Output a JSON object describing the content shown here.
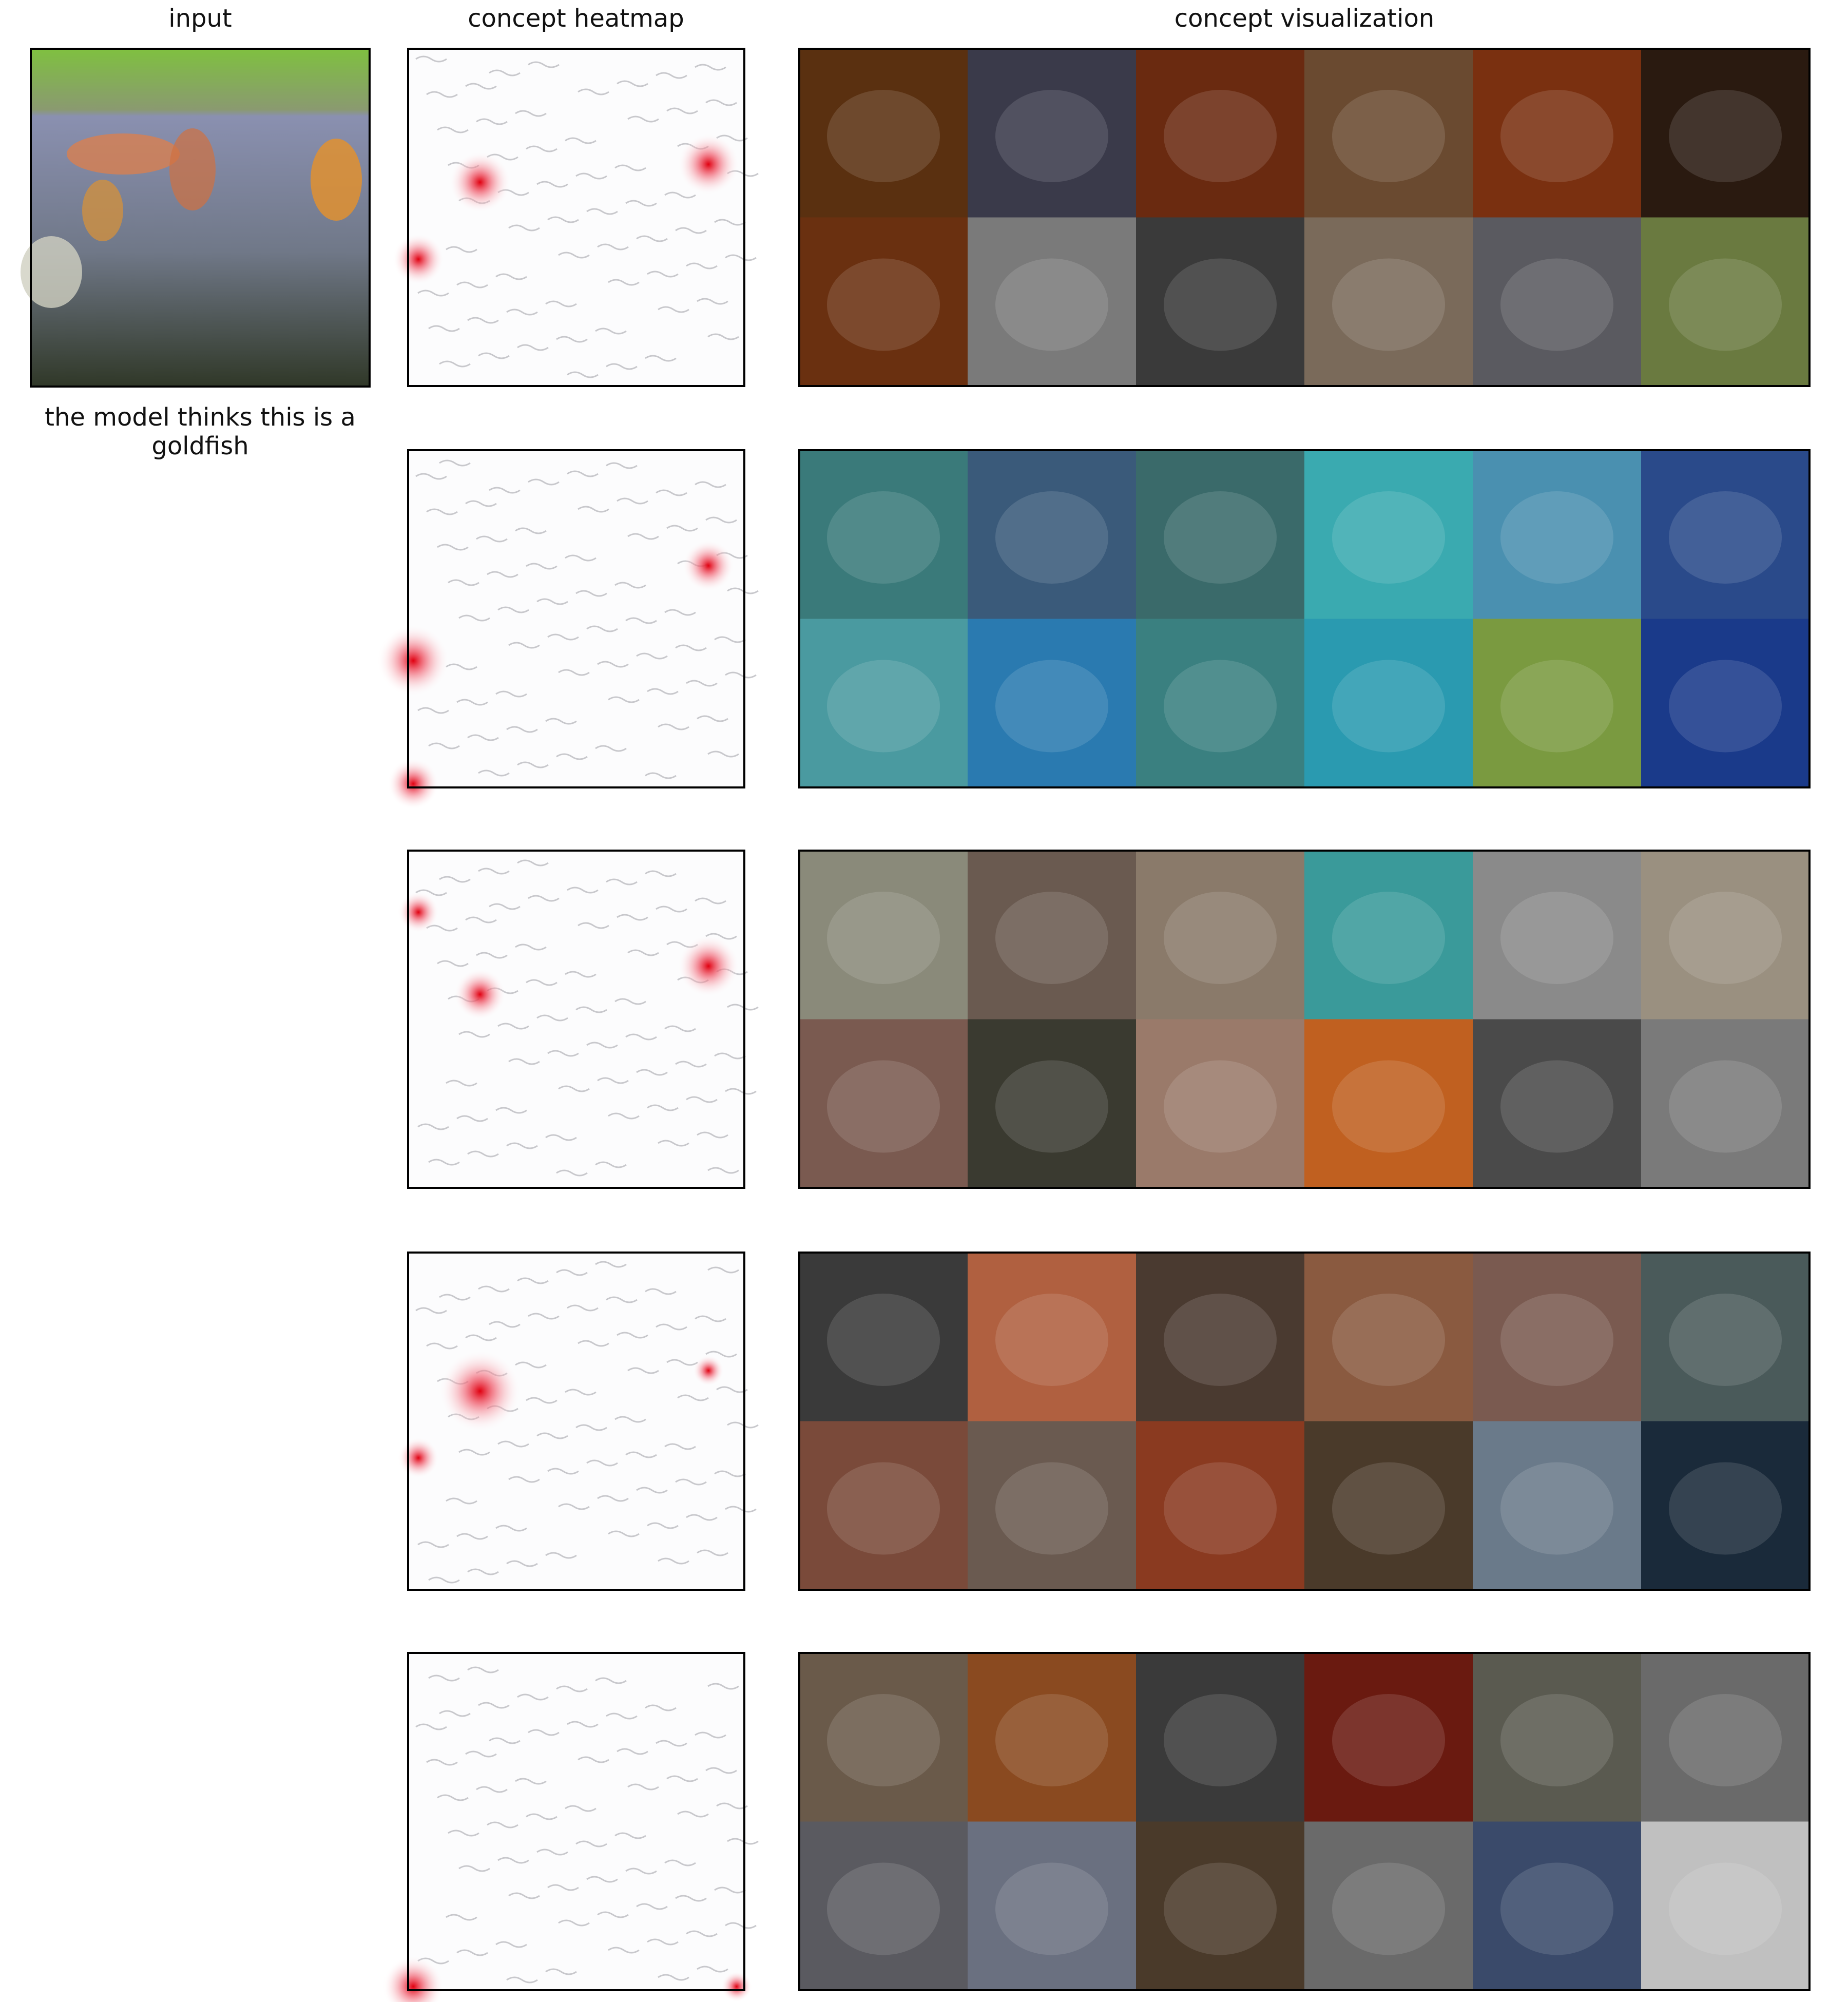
{
  "header": {
    "input": "input",
    "heatmap": "concept heatmap",
    "visualization": "concept visualization"
  },
  "caption": "the model thinks this is a goldfish"
}
